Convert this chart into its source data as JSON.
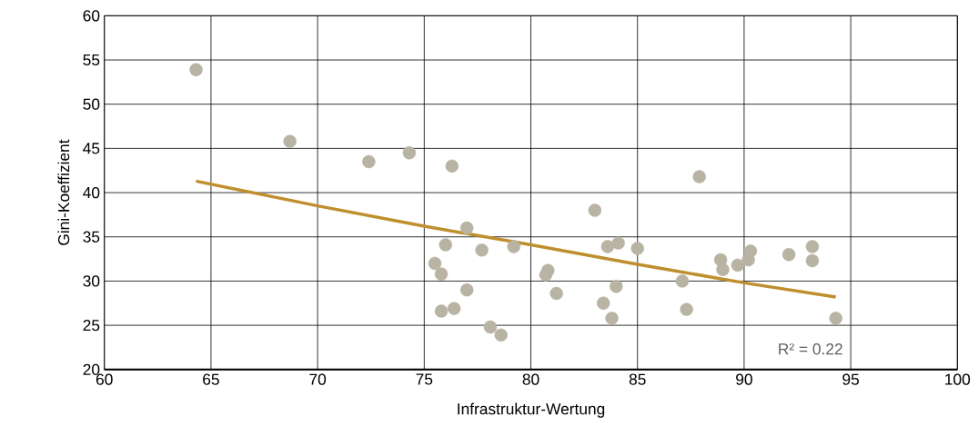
{
  "chart_data": {
    "type": "scatter",
    "xlabel": "Infrastruktur-Wertung",
    "ylabel": "Gini-Koeffizient",
    "xlim": [
      60,
      100
    ],
    "xticks": [
      60,
      65,
      70,
      75,
      80,
      85,
      90,
      95,
      100
    ],
    "ylim": [
      20,
      60
    ],
    "yticks": [
      20,
      25,
      30,
      35,
      40,
      45,
      50,
      55,
      60
    ],
    "grid": true,
    "annotations": [
      "R² = 0.22"
    ],
    "series": [
      {
        "color": "#b8b3a3",
        "marker": "circle",
        "x": [
          64.3,
          68.7,
          72.4,
          74.3,
          76.3,
          75.5,
          76.0,
          75.8,
          77.0,
          77.7,
          79.2,
          77.0,
          75.8,
          76.4,
          78.1,
          78.6,
          80.7,
          80.8,
          81.2,
          83.0,
          83.6,
          84.1,
          85.0,
          84.0,
          83.4,
          83.8,
          87.9,
          87.1,
          87.3,
          88.9,
          89.0,
          89.7,
          90.2,
          90.3,
          92.1,
          93.2,
          93.2,
          94.3
        ],
        "values": [
          53.9,
          45.8,
          43.5,
          44.5,
          43.0,
          32.0,
          34.1,
          30.8,
          36.0,
          33.5,
          33.9,
          29.0,
          26.6,
          26.9,
          24.8,
          23.9,
          30.7,
          31.2,
          28.6,
          38.0,
          33.9,
          34.3,
          33.7,
          29.4,
          27.5,
          25.8,
          41.8,
          30.0,
          26.8,
          32.4,
          31.3,
          31.8,
          32.4,
          33.4,
          33.0,
          33.9,
          32.3,
          25.8
        ]
      },
      {
        "type": "line",
        "color": "#bf8f2e",
        "marker": "none",
        "line_style": "solid",
        "x": [
          64.3,
          70,
          75,
          80,
          85,
          90,
          94.3
        ],
        "values": [
          41.3,
          38.5,
          36.2,
          34.1,
          31.9,
          29.8,
          28.2
        ]
      }
    ]
  }
}
